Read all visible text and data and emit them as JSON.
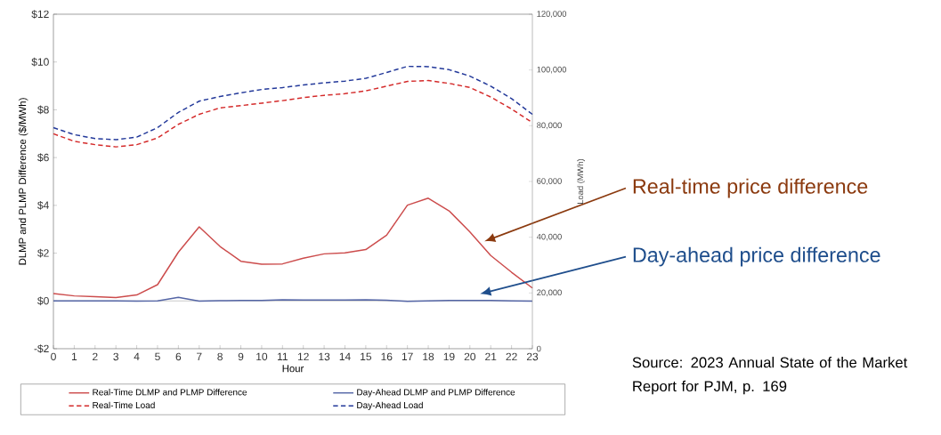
{
  "chart_data": {
    "type": "line",
    "xlabel": "Hour",
    "ylabel": "DLMP and PLMP Difference ($/MWh)",
    "y2label": "Load (MWh)",
    "x": [
      0,
      1,
      2,
      3,
      4,
      5,
      6,
      7,
      8,
      9,
      10,
      11,
      12,
      13,
      14,
      15,
      16,
      17,
      18,
      19,
      20,
      21,
      22,
      23
    ],
    "xlim": [
      0,
      23
    ],
    "xticks": [
      0,
      1,
      2,
      3,
      4,
      5,
      6,
      7,
      8,
      9,
      10,
      11,
      12,
      13,
      14,
      15,
      16,
      17,
      18,
      19,
      20,
      21,
      22,
      23
    ],
    "ylim": [
      -2,
      12
    ],
    "yticks": [
      {
        "value": -2,
        "label": "-$2"
      },
      {
        "value": 0,
        "label": "$0"
      },
      {
        "value": 2,
        "label": "$2"
      },
      {
        "value": 4,
        "label": "$4"
      },
      {
        "value": 6,
        "label": "$6"
      },
      {
        "value": 8,
        "label": "$8"
      },
      {
        "value": 10,
        "label": "$10"
      },
      {
        "value": 12,
        "label": "$12"
      }
    ],
    "y2lim": [
      0,
      120000
    ],
    "y2ticks": [
      0,
      {
        "value": 20000,
        "label": "20,000"
      },
      {
        "value": 40000,
        "label": "40,000"
      },
      {
        "value": 60000,
        "label": "60,000"
      },
      {
        "value": 80000,
        "label": "80,000"
      },
      {
        "value": 100000,
        "label": "100,000"
      },
      {
        "value": 120000,
        "label": "120,000"
      }
    ],
    "series": [
      {
        "name": "Real-Time DLMP and PLMP Difference",
        "color": "#cc4c4c",
        "line_style": "solid",
        "values": [
          0.31,
          0.21,
          0.18,
          0.14,
          0.25,
          0.68,
          2.04,
          3.1,
          2.28,
          1.66,
          1.54,
          1.55,
          1.79,
          1.97,
          2.01,
          2.15,
          2.75,
          4.01,
          4.3,
          3.77,
          2.89,
          1.9,
          1.2,
          0.54
        ]
      },
      {
        "name": "Day-Ahead DLMP and PLMP Difference",
        "color": "#5566a6",
        "line_style": "solid",
        "values": [
          0,
          0,
          0,
          0,
          -0.01,
          0,
          0.15,
          -0.01,
          0.01,
          0.02,
          0.02,
          0.05,
          0.04,
          0.04,
          0.04,
          0.05,
          0.03,
          -0.02,
          0,
          0.02,
          0.02,
          0.02,
          0,
          -0.01
        ]
      },
      {
        "name": "Real-Time Load",
        "color": "#d42a2a",
        "line_style": "dashed",
        "axis": "y2",
        "values": [
          77100,
          74400,
          73200,
          72400,
          73200,
          75600,
          80500,
          84100,
          86400,
          87200,
          88100,
          89000,
          90100,
          90900,
          91500,
          92500,
          94200,
          95900,
          96200,
          95200,
          93700,
          90300,
          86000,
          81100
        ]
      },
      {
        "name": "Day-Ahead Load",
        "color": "#23399a",
        "line_style": "dashed",
        "axis": "y2",
        "values": [
          79300,
          76800,
          75400,
          75000,
          75900,
          79300,
          84800,
          88800,
          90500,
          91800,
          93000,
          93700,
          94600,
          95400,
          96000,
          97000,
          99100,
          101300,
          101200,
          100100,
          97800,
          94200,
          89700,
          84100
        ]
      }
    ],
    "legend": "bottom",
    "annotations": [
      "Real-time price difference",
      "Day-ahead price difference",
      "Source: 2023 Annual State of the Market Report for PJM, p. 169"
    ]
  }
}
